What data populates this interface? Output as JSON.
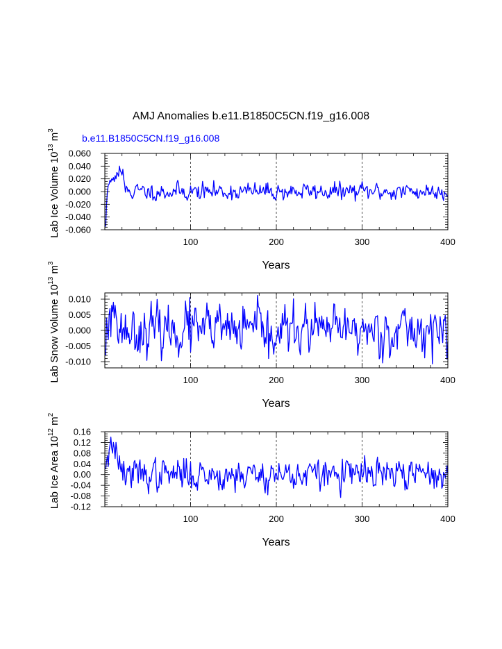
{
  "title": "AMJ Anomalies b.e11.B1850C5CN.f19_g16.008",
  "case_label": "b.e11.B1850C5CN.f19_g16.008",
  "colors": {
    "series": "#0000ff",
    "case_label": "#0000ff",
    "axis": "#000000",
    "grid": "#000000"
  },
  "chart_data": [
    {
      "type": "line",
      "ylabel": "Lab Ice Volume",
      "ylabel_exp": "13",
      "ylabel_unit": "m",
      "ylabel_unit_exp": "3",
      "xlabel": "Years",
      "xlim": [
        0,
        400
      ],
      "ylim": [
        -0.06,
        0.06
      ],
      "xticks": [
        100,
        200,
        300,
        400
      ],
      "xtick_labels": [
        "100",
        "200",
        "300",
        "400"
      ],
      "yticks": [
        -0.06,
        -0.04,
        -0.02,
        0.0,
        0.02,
        0.04,
        0.06
      ],
      "ytick_labels": [
        "-0.060",
        "-0.040",
        "-0.020",
        "0.000",
        "0.020",
        "0.040",
        "0.060"
      ],
      "grid": "x-dashed",
      "series": [
        {
          "name": "b.e11.B1850C5CN.f19_g16.008",
          "values": []
        }
      ]
    },
    {
      "type": "line",
      "ylabel": "Lab Snow Volume",
      "ylabel_exp": "13",
      "ylabel_unit": "m",
      "ylabel_unit_exp": "3",
      "xlabel": "Years",
      "xlim": [
        0,
        400
      ],
      "ylim": [
        -0.012,
        0.012
      ],
      "xticks": [
        100,
        200,
        300,
        400
      ],
      "xtick_labels": [
        "100",
        "200",
        "300",
        "400"
      ],
      "yticks": [
        -0.01,
        -0.005,
        0.0,
        0.005,
        0.01
      ],
      "ytick_labels": [
        "-0.010",
        "-0.005",
        "0.000",
        "0.005",
        "0.010"
      ],
      "grid": "x-dashed",
      "series": [
        {
          "name": "b.e11.B1850C5CN.f19_g16.008",
          "values": []
        }
      ]
    },
    {
      "type": "line",
      "ylabel": "Lab Ice Area",
      "ylabel_exp": "12",
      "ylabel_unit": "m",
      "ylabel_unit_exp": "2",
      "xlabel": "Years",
      "xlim": [
        0,
        400
      ],
      "ylim": [
        -0.12,
        0.16
      ],
      "xticks": [
        100,
        200,
        300,
        400
      ],
      "xtick_labels": [
        "100",
        "200",
        "300",
        "400"
      ],
      "yticks": [
        -0.12,
        -0.08,
        -0.04,
        0.0,
        0.04,
        0.08,
        0.12,
        0.16
      ],
      "ytick_labels": [
        "-0.12",
        "-0.08",
        "-0.04",
        "0.00",
        "0.04",
        "0.08",
        "0.12",
        "0.16"
      ],
      "grid": "x-dashed",
      "series": [
        {
          "name": "b.e11.B1850C5CN.f19_g16.008",
          "values": []
        }
      ]
    }
  ]
}
